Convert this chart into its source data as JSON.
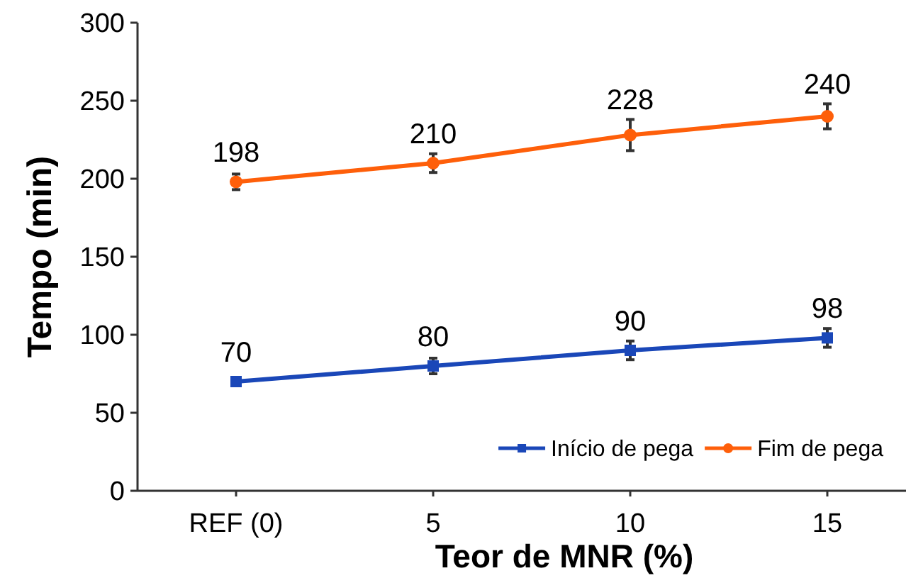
{
  "chart_data": {
    "type": "line",
    "xlabel": "Teor de MNR (%)",
    "ylabel": "Tempo (min)",
    "categories": [
      "REF (0)",
      "5",
      "10",
      "15"
    ],
    "series": [
      {
        "name": "Início de pega",
        "color": "#1a47b8",
        "values": [
          70,
          80,
          90,
          98
        ],
        "errors": [
          null,
          5,
          6,
          6
        ],
        "marker": "square"
      },
      {
        "name": "Fim de pega",
        "color": "#fe5f0a",
        "values": [
          198,
          210,
          228,
          240
        ],
        "errors": [
          5,
          6,
          10,
          8
        ],
        "marker": "circle"
      }
    ],
    "ylim": [
      0,
      300
    ],
    "yticks": [
      0,
      50,
      100,
      150,
      200,
      250,
      300
    ],
    "data_labels": true,
    "legend": "bottom right",
    "grid": false
  }
}
